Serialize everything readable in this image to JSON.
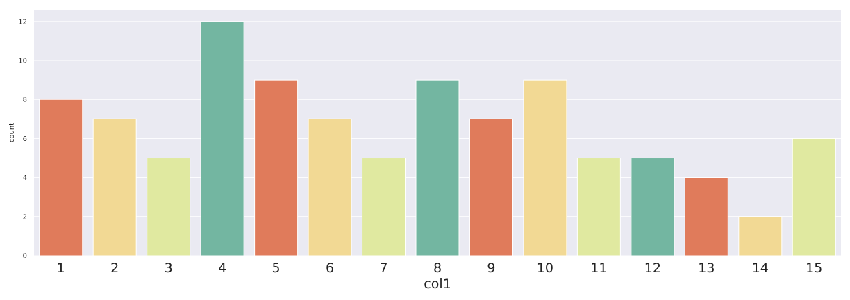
{
  "chart_data": {
    "type": "bar",
    "title": "",
    "xlabel": "col1",
    "ylabel": "count",
    "ylim": [
      0,
      12.6
    ],
    "yticks": [
      0,
      2,
      4,
      6,
      8,
      10,
      12
    ],
    "grid": true,
    "background": "#eaeaf2",
    "categories": [
      "1",
      "2",
      "3",
      "4",
      "5",
      "6",
      "7",
      "8",
      "9",
      "10",
      "11",
      "12",
      "13",
      "14",
      "15"
    ],
    "values": [
      8,
      7,
      5,
      12,
      9,
      7,
      5,
      9,
      7,
      9,
      5,
      5,
      4,
      2,
      6
    ],
    "colors": [
      "#e07b5b",
      "#f2d994",
      "#e0e9a0",
      "#73b6a1",
      "#e07b5b",
      "#f2d994",
      "#e0e9a0",
      "#73b6a1",
      "#e07b5b",
      "#f2d994",
      "#e0e9a0",
      "#73b6a1",
      "#e07b5b",
      "#f2d994",
      "#e0e9a0"
    ]
  }
}
